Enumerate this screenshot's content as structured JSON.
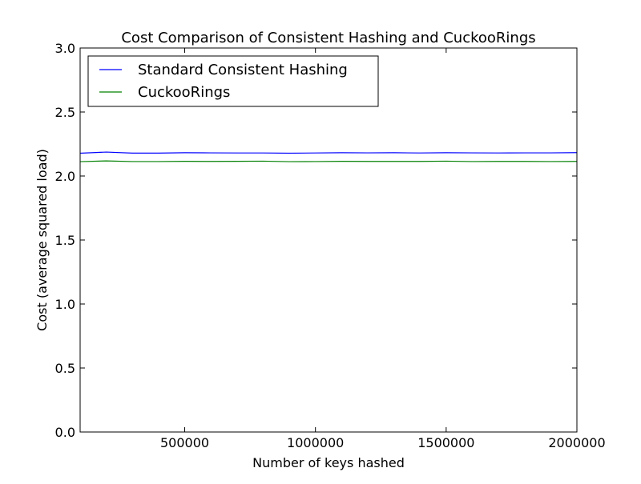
{
  "chart_data": {
    "type": "line",
    "title": "Cost Comparison of Consistent Hashing and CuckooRings",
    "xlabel": "Number of keys hashed",
    "ylabel": "Cost (average squared load)",
    "xlim": [
      100000,
      2000000
    ],
    "ylim": [
      0.0,
      3.0
    ],
    "xticks": [
      {
        "value": 500000,
        "label": "500000"
      },
      {
        "value": 1000000,
        "label": "1000000"
      },
      {
        "value": 1500000,
        "label": "1500000"
      },
      {
        "value": 2000000,
        "label": "2000000"
      }
    ],
    "yticks": [
      {
        "value": 0.0,
        "label": "0.0"
      },
      {
        "value": 0.5,
        "label": "0.5"
      },
      {
        "value": 1.0,
        "label": "1.0"
      },
      {
        "value": 1.5,
        "label": "1.5"
      },
      {
        "value": 2.0,
        "label": "2.0"
      },
      {
        "value": 2.5,
        "label": "2.5"
      },
      {
        "value": 3.0,
        "label": "3.0"
      }
    ],
    "grid": false,
    "legend_position": "top-left",
    "x": [
      100000,
      200000,
      300000,
      400000,
      500000,
      600000,
      700000,
      800000,
      900000,
      1000000,
      1100000,
      1200000,
      1300000,
      1400000,
      1500000,
      1600000,
      1700000,
      1800000,
      1900000,
      2000000
    ],
    "series": [
      {
        "name": "Standard Consistent Hashing",
        "color": "#0000ff",
        "values": [
          2.178,
          2.187,
          2.179,
          2.179,
          2.182,
          2.181,
          2.18,
          2.18,
          2.178,
          2.18,
          2.182,
          2.181,
          2.182,
          2.18,
          2.182,
          2.181,
          2.18,
          2.181,
          2.181,
          2.183
        ]
      },
      {
        "name": "CuckooRings",
        "color": "#008000",
        "values": [
          2.112,
          2.118,
          2.113,
          2.113,
          2.115,
          2.114,
          2.115,
          2.116,
          2.112,
          2.113,
          2.115,
          2.114,
          2.114,
          2.114,
          2.116,
          2.113,
          2.114,
          2.114,
          2.113,
          2.114
        ]
      }
    ]
  }
}
